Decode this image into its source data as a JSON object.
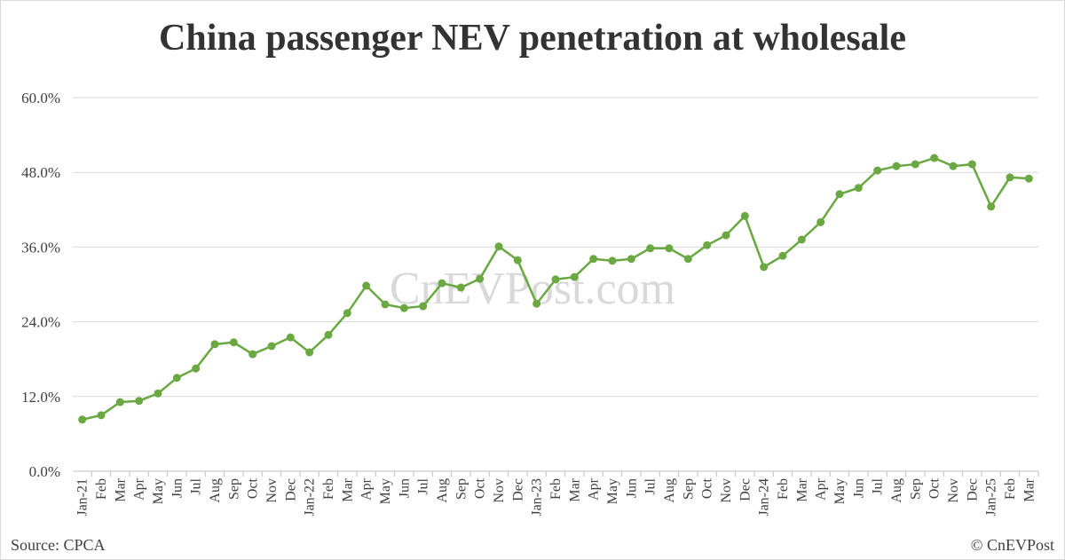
{
  "chart_data": {
    "type": "line",
    "title": "China passenger NEV penetration at wholesale",
    "categories": [
      "Jan-21",
      "Feb",
      "Mar",
      "Apr",
      "May",
      "Jun",
      "Jul",
      "Aug",
      "Sep",
      "Oct",
      "Nov",
      "Dec",
      "Jan-22",
      "Feb",
      "Mar",
      "Apr",
      "May",
      "Jun",
      "Jul",
      "Aug",
      "Sep",
      "Oct",
      "Nov",
      "Dec",
      "Jan-23",
      "Feb",
      "Mar",
      "Apr",
      "May",
      "Jun",
      "Jul",
      "Aug",
      "Sep",
      "Oct",
      "Nov",
      "Dec",
      "Jan-24",
      "Feb",
      "Mar",
      "Apr",
      "May",
      "Jun",
      "Jul",
      "Aug",
      "Sep",
      "Oct",
      "Nov",
      "Dec",
      "Jan-25",
      "Feb",
      "Mar"
    ],
    "series": [
      {
        "name": "NEV penetration",
        "color": "#6aa842",
        "values": [
          8.3,
          9.0,
          11.1,
          11.3,
          12.5,
          15.0,
          16.5,
          20.4,
          20.7,
          18.8,
          20.1,
          21.5,
          19.1,
          21.9,
          25.4,
          29.8,
          26.8,
          26.2,
          26.5,
          30.2,
          29.5,
          30.9,
          36.1,
          33.9,
          26.9,
          30.8,
          31.2,
          34.1,
          33.8,
          34.1,
          35.8,
          35.8,
          34.1,
          36.3,
          37.9,
          41.0,
          32.8,
          34.6,
          37.2,
          40.0,
          44.5,
          45.5,
          48.3,
          49.0,
          49.3,
          50.3,
          49.0,
          49.3,
          42.5,
          47.2,
          47.0
        ]
      }
    ],
    "ylim": [
      0,
      60
    ],
    "yticks": [
      {
        "value": 0,
        "label": "0.0%"
      },
      {
        "value": 12,
        "label": "12.0%"
      },
      {
        "value": 24,
        "label": "24.0%"
      },
      {
        "value": 36,
        "label": "36.0%"
      },
      {
        "value": 48,
        "label": "48.0%"
      },
      {
        "value": 60,
        "label": "60.0%"
      }
    ],
    "grid": true,
    "legend": false,
    "watermark": "CnEVPost.com",
    "source": "Source: CPCA",
    "copyright": "© CnEVPost"
  }
}
